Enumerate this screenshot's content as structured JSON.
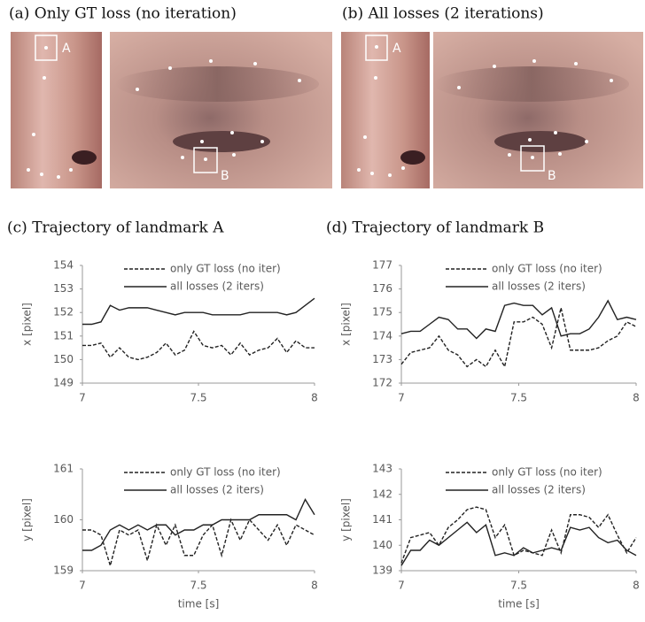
{
  "panels": [
    {
      "caption": "(a)  Only GT loss (no iteration)",
      "box_labels": [
        "A",
        "B"
      ]
    },
    {
      "caption": "(b)  All losses (2 iterations)",
      "box_labels": [
        "A",
        "B"
      ]
    }
  ],
  "chart_data": [
    {
      "type": "line",
      "title": "(c)  Trajectory of landmark A",
      "ylabel": "x [pixel]",
      "x": [
        7,
        7.04,
        7.08,
        7.12,
        7.16,
        7.2,
        7.24,
        7.28,
        7.32,
        7.36,
        7.4,
        7.44,
        7.48,
        7.52,
        7.56,
        7.6,
        7.64,
        7.68,
        7.72,
        7.76,
        7.8,
        7.84,
        7.88,
        7.92,
        7.96,
        8
      ],
      "series": [
        {
          "name": "only GT loss (no iter)",
          "color": "#222222",
          "dashed": true,
          "values": [
            150.6,
            150.6,
            150.7,
            150.1,
            150.5,
            150.1,
            150.0,
            150.1,
            150.3,
            150.7,
            150.2,
            150.4,
            151.2,
            150.6,
            150.5,
            150.6,
            150.2,
            150.7,
            150.2,
            150.4,
            150.5,
            150.9,
            150.3,
            150.8,
            150.5,
            150.5
          ]
        },
        {
          "name": "all losses (2 iters)",
          "color": "#222222",
          "dashed": false,
          "values": [
            151.5,
            151.5,
            151.6,
            152.3,
            152.1,
            152.2,
            152.2,
            152.2,
            152.1,
            152.0,
            151.9,
            152.0,
            152.0,
            152.0,
            151.9,
            151.9,
            151.9,
            151.9,
            152.0,
            152.0,
            152.0,
            152.0,
            151.9,
            152.0,
            152.3,
            152.6
          ]
        }
      ],
      "xlim": [
        7,
        8
      ],
      "xticks": [
        7,
        7.5,
        8
      ],
      "ylim": [
        149,
        154
      ],
      "yticks": [
        149,
        150,
        151,
        152,
        153,
        154
      ],
      "legend": "upper right"
    },
    {
      "type": "line",
      "ylabel": "y [pixel]",
      "xlabel": "time [s]",
      "x": [
        7,
        7.04,
        7.08,
        7.12,
        7.16,
        7.2,
        7.24,
        7.28,
        7.32,
        7.36,
        7.4,
        7.44,
        7.48,
        7.52,
        7.56,
        7.6,
        7.64,
        7.68,
        7.72,
        7.76,
        7.8,
        7.84,
        7.88,
        7.92,
        7.96,
        8
      ],
      "series": [
        {
          "name": "only GT loss (no iter)",
          "color": "#222222",
          "dashed": true,
          "values": [
            159.8,
            159.8,
            159.7,
            159.1,
            159.8,
            159.7,
            159.8,
            159.2,
            159.9,
            159.5,
            159.9,
            159.3,
            159.3,
            159.7,
            159.9,
            159.3,
            160.0,
            159.6,
            160.0,
            159.8,
            159.6,
            159.9,
            159.5,
            159.9,
            159.8,
            159.7
          ]
        },
        {
          "name": "all losses (2 iters)",
          "color": "#222222",
          "dashed": false,
          "values": [
            159.4,
            159.4,
            159.5,
            159.8,
            159.9,
            159.8,
            159.9,
            159.8,
            159.9,
            159.9,
            159.7,
            159.8,
            159.8,
            159.9,
            159.9,
            160.0,
            160.0,
            160.0,
            160.0,
            160.1,
            160.1,
            160.1,
            160.1,
            160.0,
            160.4,
            160.1
          ]
        }
      ],
      "xlim": [
        7,
        8
      ],
      "xticks": [
        7,
        7.5,
        8
      ],
      "ylim": [
        159,
        161
      ],
      "yticks": [
        159,
        160,
        161
      ],
      "legend": "upper right"
    },
    {
      "type": "line",
      "title": "(d)  Trajectory of landmark B",
      "ylabel": "x [pixel]",
      "x": [
        7,
        7.04,
        7.08,
        7.12,
        7.16,
        7.2,
        7.24,
        7.28,
        7.32,
        7.36,
        7.4,
        7.44,
        7.48,
        7.52,
        7.56,
        7.6,
        7.64,
        7.68,
        7.72,
        7.76,
        7.8,
        7.84,
        7.88,
        7.92,
        7.96,
        8
      ],
      "series": [
        {
          "name": "only GT loss (no iter)",
          "color": "#222222",
          "dashed": true,
          "values": [
            172.8,
            173.3,
            173.4,
            173.5,
            174.0,
            173.4,
            173.2,
            172.7,
            173.0,
            172.7,
            173.4,
            172.7,
            174.6,
            174.6,
            174.8,
            174.5,
            173.5,
            175.2,
            173.4,
            173.4,
            173.4,
            173.5,
            173.8,
            174.0,
            174.6,
            174.4
          ]
        },
        {
          "name": "all losses (2 iters)",
          "color": "#222222",
          "dashed": false,
          "values": [
            174.1,
            174.2,
            174.2,
            174.5,
            174.8,
            174.7,
            174.3,
            174.3,
            173.9,
            174.3,
            174.2,
            175.3,
            175.4,
            175.3,
            175.3,
            174.9,
            175.2,
            174.0,
            174.1,
            174.1,
            174.3,
            174.8,
            175.5,
            174.7,
            174.8,
            174.7
          ]
        }
      ],
      "xlim": [
        7,
        8
      ],
      "xticks": [
        7,
        7.5,
        8
      ],
      "ylim": [
        172,
        177
      ],
      "yticks": [
        172,
        173,
        174,
        175,
        176,
        177
      ],
      "legend": "upper right"
    },
    {
      "type": "line",
      "ylabel": "y [pixel]",
      "xlabel": "time [s]",
      "x": [
        7,
        7.04,
        7.08,
        7.12,
        7.16,
        7.2,
        7.24,
        7.28,
        7.32,
        7.36,
        7.4,
        7.44,
        7.48,
        7.52,
        7.56,
        7.6,
        7.64,
        7.68,
        7.72,
        7.76,
        7.8,
        7.84,
        7.88,
        7.92,
        7.96,
        8
      ],
      "series": [
        {
          "name": "only GT loss (no iter)",
          "color": "#222222",
          "dashed": true,
          "values": [
            139.3,
            140.3,
            140.4,
            140.5,
            140.0,
            140.7,
            141.0,
            141.4,
            141.5,
            141.4,
            140.3,
            140.8,
            139.6,
            139.8,
            139.7,
            139.6,
            140.6,
            139.7,
            141.2,
            141.2,
            141.1,
            140.7,
            141.2,
            140.4,
            139.7,
            140.3
          ]
        },
        {
          "name": "all losses (2 iters)",
          "color": "#222222",
          "dashed": false,
          "values": [
            139.2,
            139.8,
            139.8,
            140.2,
            140.0,
            140.3,
            140.6,
            140.9,
            140.5,
            140.8,
            139.6,
            139.7,
            139.6,
            139.9,
            139.7,
            139.8,
            139.9,
            139.8,
            140.7,
            140.6,
            140.7,
            140.3,
            140.1,
            140.2,
            139.8,
            139.6
          ]
        }
      ],
      "xlim": [
        7,
        8
      ],
      "xticks": [
        7,
        7.5,
        8
      ],
      "ylim": [
        139,
        143
      ],
      "yticks": [
        139,
        140,
        141,
        142,
        143
      ],
      "legend": "upper right"
    }
  ]
}
